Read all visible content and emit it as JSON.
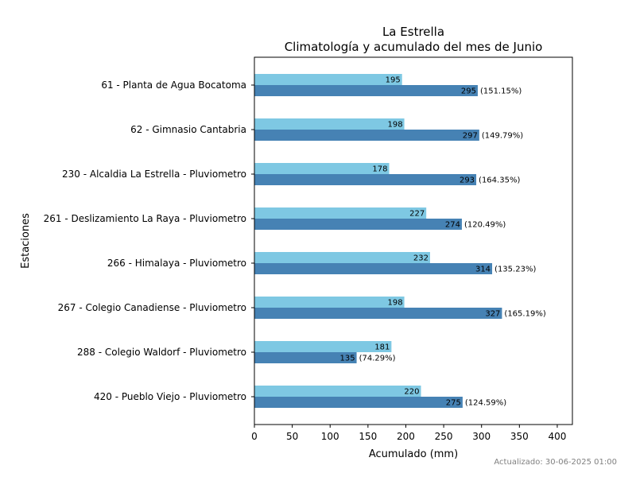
{
  "chart_data": {
    "type": "bar",
    "orientation": "horizontal",
    "title": "La Estrella",
    "subtitle": "Climatología y acumulado del mes de Junio",
    "xlabel": "Acumulado (mm)",
    "ylabel": "Estaciones",
    "xlim": [
      0,
      420
    ],
    "xticks": [
      0,
      50,
      100,
      150,
      200,
      250,
      300,
      350,
      400
    ],
    "grid": false,
    "categories": [
      "61 - Planta de Agua Bocatoma",
      "62 - Gimnasio Cantabria",
      "230 - Alcaldia La Estrella - Pluviometro",
      "261 - Deslizamiento La Raya - Pluviometro",
      "266 - Himalaya - Pluviometro",
      "267 - Colegio Canadiense - Pluviometro",
      "288 - Colegio Waldorf - Pluviometro",
      "420 - Pueblo Viejo - Pluviometro"
    ],
    "series": [
      {
        "color": "#7ec8e3",
        "values": [
          195,
          198,
          178,
          227,
          232,
          198,
          181,
          220
        ]
      },
      {
        "color": "#4682b4",
        "values": [
          295,
          297,
          293,
          274,
          314,
          327,
          135,
          275
        ],
        "percent_labels": [
          "(151.15%)",
          "(149.79%)",
          "(164.35%)",
          "(120.49%)",
          "(135.23%)",
          "(165.19%)",
          "(74.29%)",
          "(124.59%)"
        ]
      }
    ]
  },
  "footer": {
    "updated": "Actualizado: 30-06-2025 01:00"
  }
}
